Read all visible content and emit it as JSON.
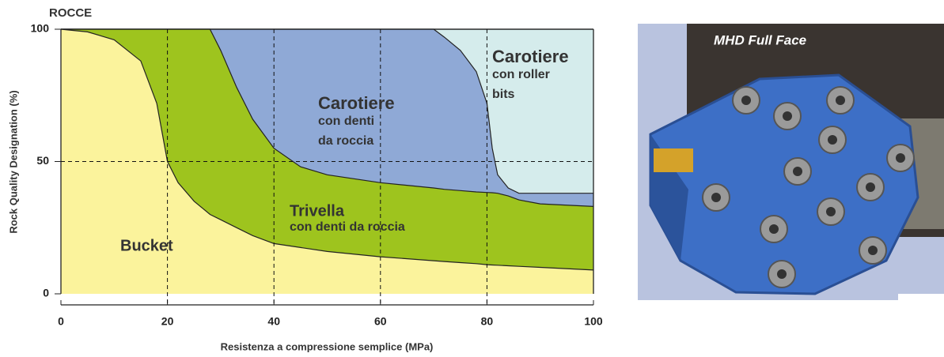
{
  "chart_data": {
    "type": "area",
    "title": "ROCCE",
    "x_label": "Resistenza a compressione semplice (MPa)",
    "y_label": "Rock Quality Designation (%)",
    "x": [
      0,
      5,
      10,
      15,
      18,
      20,
      22,
      25,
      28,
      30,
      33,
      36,
      40,
      45,
      50,
      60,
      70,
      72,
      75,
      78,
      80,
      81,
      82,
      84,
      86,
      90,
      100
    ],
    "series": [
      {
        "name": "Bucket",
        "sublabel": [],
        "color": "#fbf39c",
        "values": [
          100,
          99,
          96,
          88,
          72,
          50,
          42,
          35,
          30,
          28,
          25,
          22,
          19,
          17.5,
          16,
          14,
          12.5,
          12.2,
          11.8,
          11.4,
          11,
          10.9,
          10.8,
          10.6,
          10.4,
          10,
          9
        ]
      },
      {
        "name": "Trivella",
        "sublabel": [
          "con denti da roccia"
        ],
        "color": "#9ec41e",
        "values": [
          100,
          100,
          100,
          100,
          100,
          100,
          100,
          100,
          100,
          92,
          78,
          66,
          55,
          48,
          45,
          42,
          40,
          39.5,
          39,
          38.5,
          38.3,
          38.2,
          38,
          37,
          35.5,
          34,
          33
        ]
      },
      {
        "name": "Carotiere",
        "sublabel": [
          "con denti",
          "da roccia"
        ],
        "color": "#8fa9d6",
        "values": [
          100,
          100,
          100,
          100,
          100,
          100,
          100,
          100,
          100,
          100,
          100,
          100,
          100,
          100,
          100,
          100,
          100,
          97,
          92,
          84,
          72,
          55,
          45,
          40,
          38,
          38,
          38
        ]
      },
      {
        "name": "Carotiere",
        "sublabel": [
          "con roller",
          "bits"
        ],
        "color": "#d5ecec",
        "values": [
          100,
          100,
          100,
          100,
          100,
          100,
          100,
          100,
          100,
          100,
          100,
          100,
          100,
          100,
          100,
          100,
          100,
          100,
          100,
          100,
          100,
          100,
          100,
          100,
          100,
          100,
          100
        ]
      }
    ],
    "xlim": [
      0,
      100
    ],
    "xticks": [
      0,
      20,
      40,
      60,
      80,
      100
    ],
    "ylim": [
      0,
      100
    ],
    "yticks": [
      0,
      50,
      100
    ],
    "grid": "dashed"
  },
  "photo": {
    "caption": "MHD Full Face"
  }
}
